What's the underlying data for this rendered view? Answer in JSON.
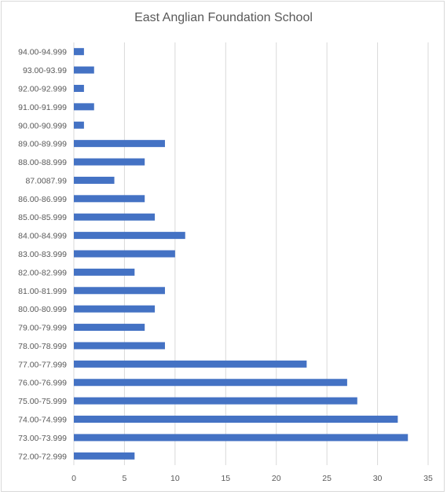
{
  "chart_data": {
    "type": "bar",
    "orientation": "horizontal",
    "title": "East Anglian Foundation School",
    "xlabel": "",
    "ylabel": "",
    "xlim": [
      0,
      35
    ],
    "xticks": [
      0,
      5,
      10,
      15,
      20,
      25,
      30,
      35
    ],
    "grid": true,
    "legend": "none",
    "bar_color": "#4472c4",
    "categories": [
      "94.00-94.999",
      "93.00-93.99",
      "92.00-92.999",
      "91.00-91.999",
      "90.00-90.999",
      "89.00-89.999",
      "88.00-88.999",
      "87.0087.99",
      "86.00-86.999",
      "85.00-85.999",
      "84.00-84.999",
      "83.00-83.999",
      "82.00-82.999",
      "81.00-81.999",
      "80.00-80.999",
      "79.00-79.999",
      "78.00-78.999",
      "77.00-77.999",
      "76.00-76.999",
      "75.00-75.999",
      "74.00-74.999",
      "73.00-73.999",
      "72.00-72.999"
    ],
    "values": [
      1,
      2,
      1,
      2,
      1,
      9,
      7,
      4,
      7,
      8,
      11,
      10,
      6,
      9,
      8,
      7,
      9,
      23,
      27,
      28,
      32,
      33,
      6
    ]
  }
}
